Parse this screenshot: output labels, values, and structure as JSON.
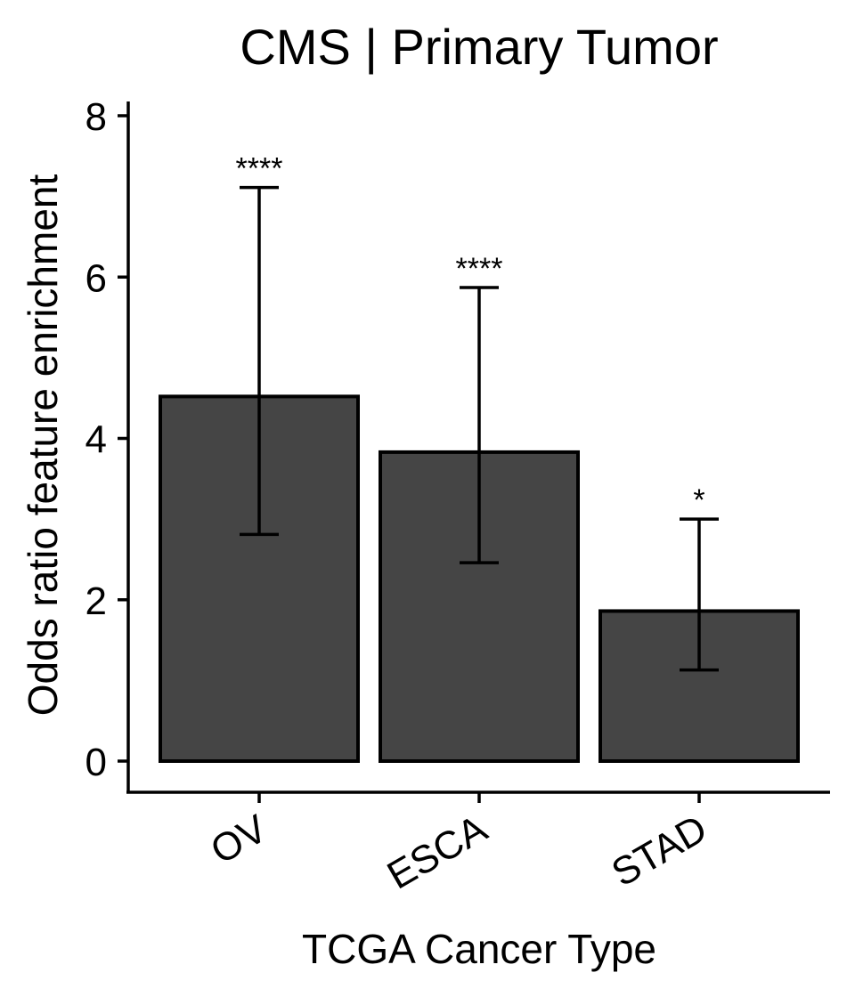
{
  "chart_data": {
    "type": "bar",
    "title": "CMS | Primary Tumor",
    "xlabel": "TCGA Cancer Type",
    "ylabel": "Odds ratio feature enrichment",
    "categories": [
      "OV",
      "ESCA",
      "STAD"
    ],
    "values": [
      4.52,
      3.83,
      1.86
    ],
    "error_low": [
      2.81,
      2.46,
      1.13
    ],
    "error_high": [
      7.11,
      5.87,
      3.0
    ],
    "significance": [
      "****",
      "****",
      "*"
    ],
    "yticks": [
      "0",
      "2",
      "4",
      "6",
      "8"
    ],
    "ylim": [
      0,
      8
    ],
    "grid": false,
    "legend": "none",
    "colors": {
      "bar_fill": "#454545",
      "bar_stroke": "#000000",
      "axis": "#000000"
    }
  }
}
